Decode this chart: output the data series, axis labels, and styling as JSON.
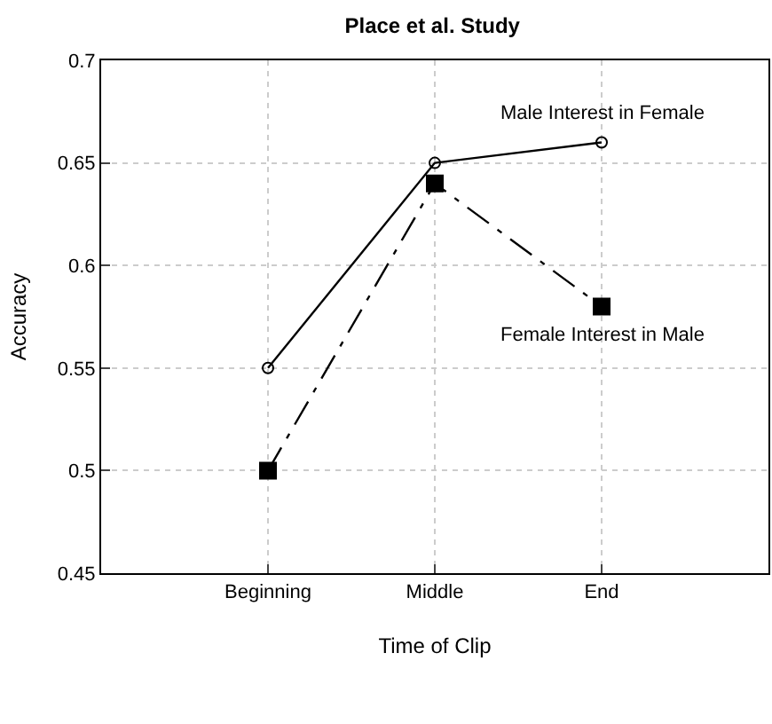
{
  "chart_data": {
    "type": "line",
    "title": "Place et al. Study",
    "xlabel": "Time of Clip",
    "ylabel": "Accuracy",
    "categories": [
      "Beginning",
      "Middle",
      "End"
    ],
    "series": [
      {
        "name": "Male Interest in Female",
        "color": "#000000",
        "values": [
          0.55,
          0.65,
          0.66
        ],
        "marker": "circle",
        "line_style": "solid"
      },
      {
        "name": "Female Interest in Male",
        "color": "#000000",
        "values": [
          0.5,
          0.64,
          0.58
        ],
        "marker": "square",
        "line_style": "dashdot"
      }
    ],
    "ylim": [
      0.45,
      0.7
    ],
    "yticks": [
      0.45,
      0.5,
      0.55,
      0.6,
      0.65,
      0.7
    ],
    "grid": true,
    "legend": false
  }
}
